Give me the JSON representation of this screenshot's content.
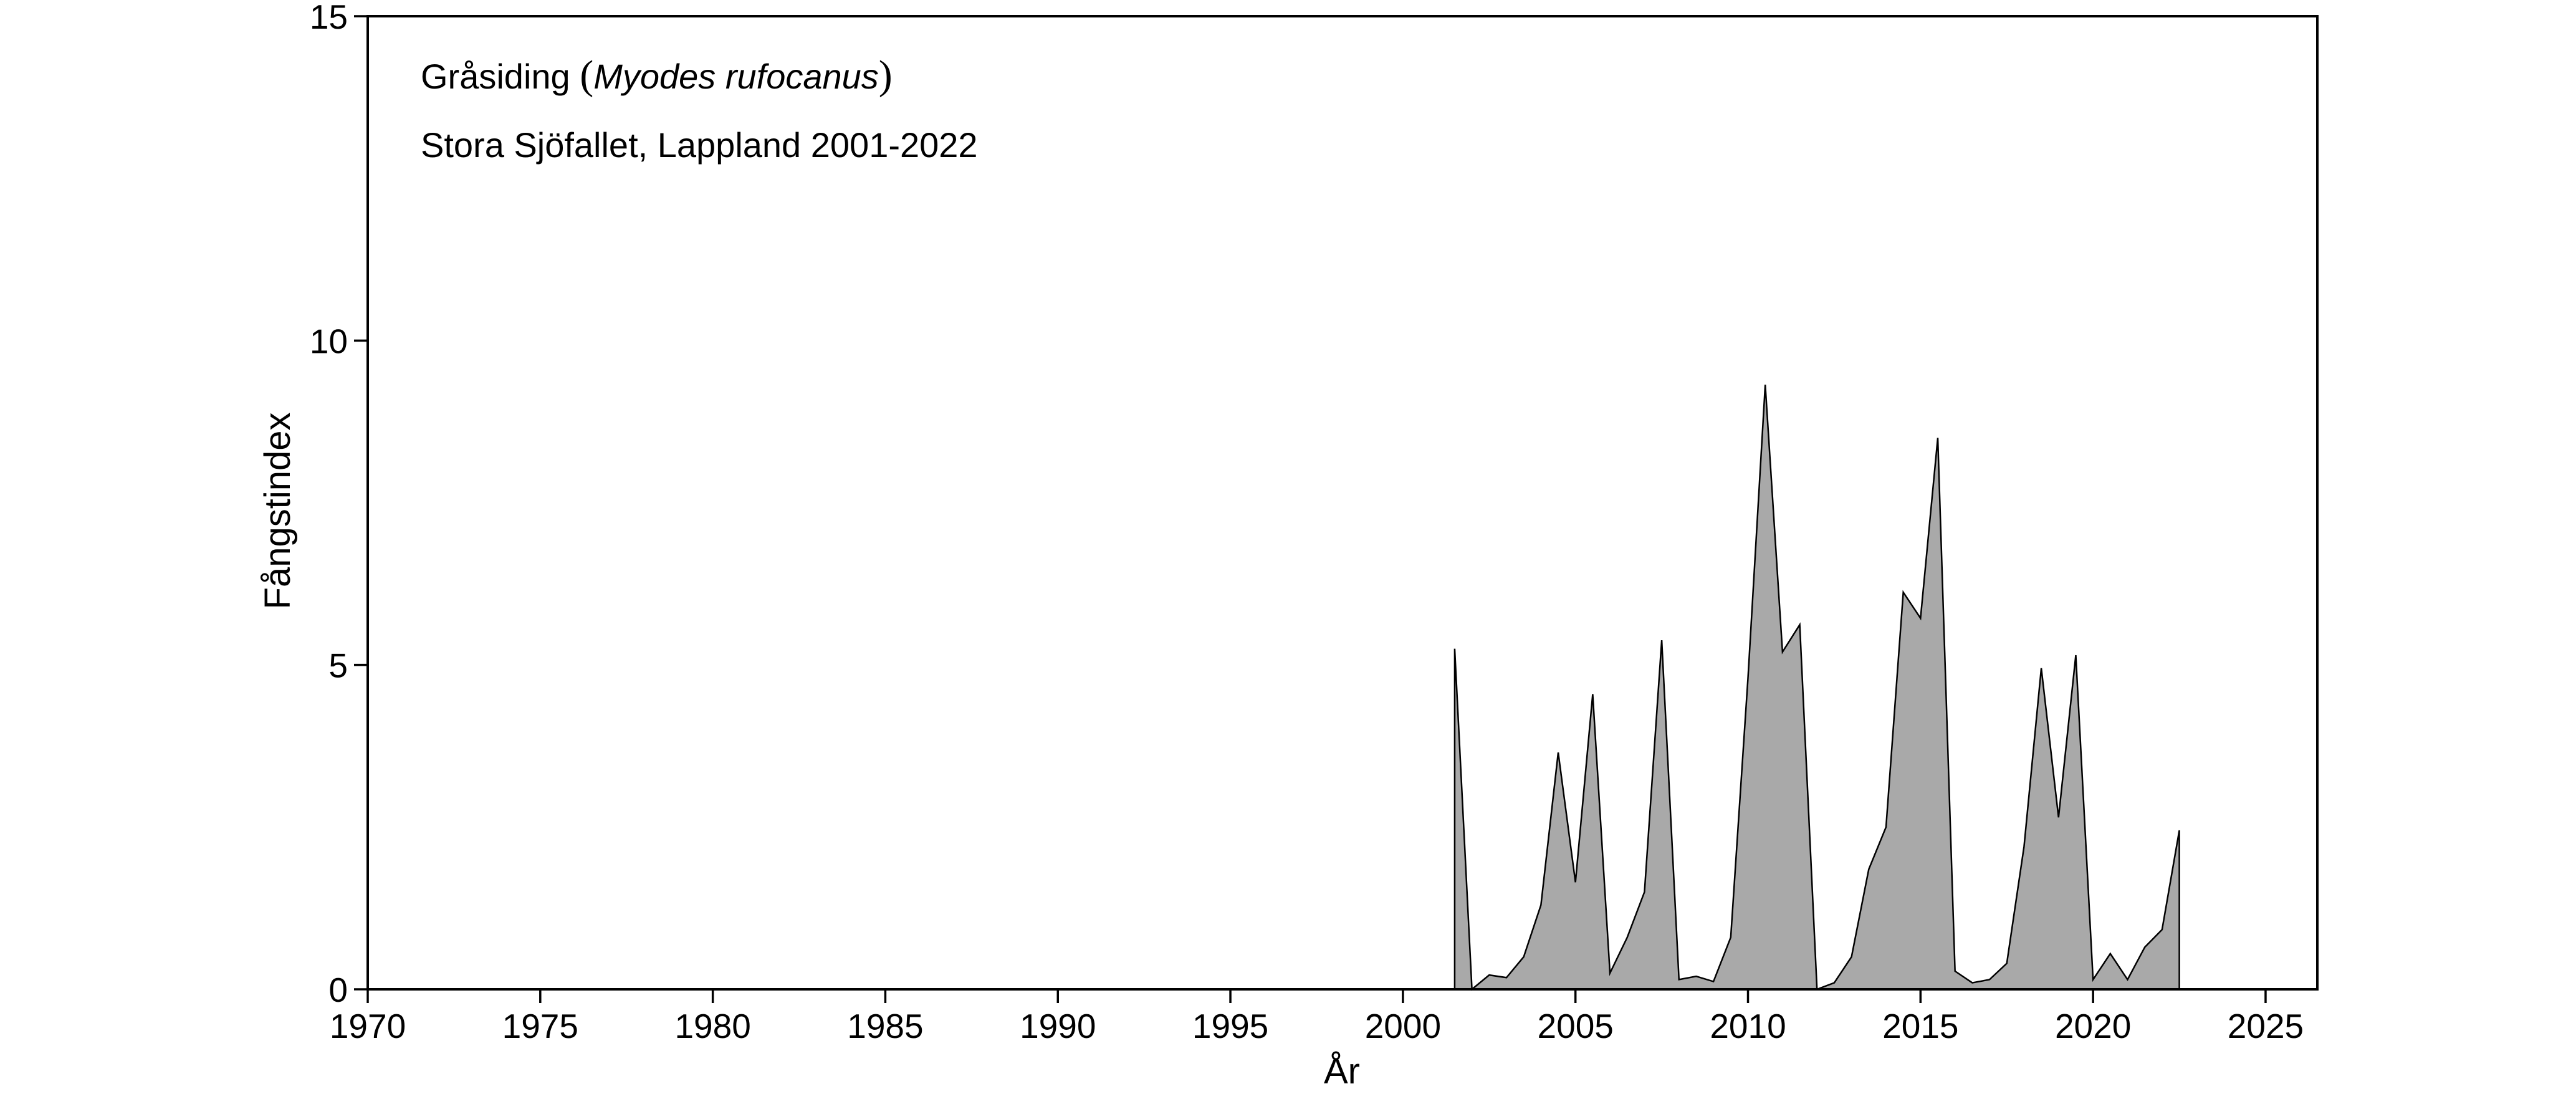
{
  "chart_data": {
    "type": "area",
    "title": "Gråsiding",
    "title_open": "(",
    "title_species": "Myodes rufocanus",
    "title_close": ")",
    "subtitle": "Stora Sjöfallet, Lappland 2001-2022",
    "xlabel": "År",
    "ylabel": "Fångstindex",
    "xlim": [
      1970,
      2026.5
    ],
    "ylim": [
      0,
      15
    ],
    "xticks": [
      1970,
      1975,
      1980,
      1985,
      1990,
      1995,
      2000,
      2005,
      2010,
      2015,
      2020,
      2025
    ],
    "yticks": [
      0,
      5,
      10,
      15
    ],
    "grid": false,
    "fill_color": "#a9a9a9",
    "line_color": "#000000",
    "series": [
      {
        "x": [
          2001.5,
          2002.0,
          2002.5,
          2003.0,
          2003.5,
          2004.0,
          2004.5,
          2005.0,
          2005.5,
          2006.0,
          2006.5,
          2007.0,
          2007.5,
          2008.0,
          2008.5,
          2009.0,
          2009.5,
          2010.0,
          2010.5,
          2011.0,
          2011.5,
          2012.0,
          2012.5,
          2013.0,
          2013.5,
          2014.0,
          2014.5,
          2015.0,
          2015.5,
          2016.0,
          2016.5,
          2017.0,
          2017.5,
          2018.0,
          2018.5,
          2019.0,
          2019.5,
          2020.0,
          2020.5,
          2021.0,
          2021.5,
          2022.0,
          2022.5
        ],
        "y": [
          5.25,
          0.0,
          0.22,
          0.18,
          0.5,
          1.3,
          3.65,
          1.65,
          4.55,
          0.25,
          0.8,
          1.5,
          5.38,
          0.15,
          0.2,
          0.12,
          0.8,
          4.8,
          9.32,
          5.2,
          5.62,
          0.0,
          0.1,
          0.5,
          1.85,
          2.5,
          6.12,
          5.72,
          8.5,
          0.28,
          0.1,
          0.15,
          0.4,
          2.2,
          4.95,
          2.65,
          5.15,
          0.15,
          0.55,
          0.15,
          0.65,
          0.92,
          2.45
        ]
      }
    ]
  }
}
